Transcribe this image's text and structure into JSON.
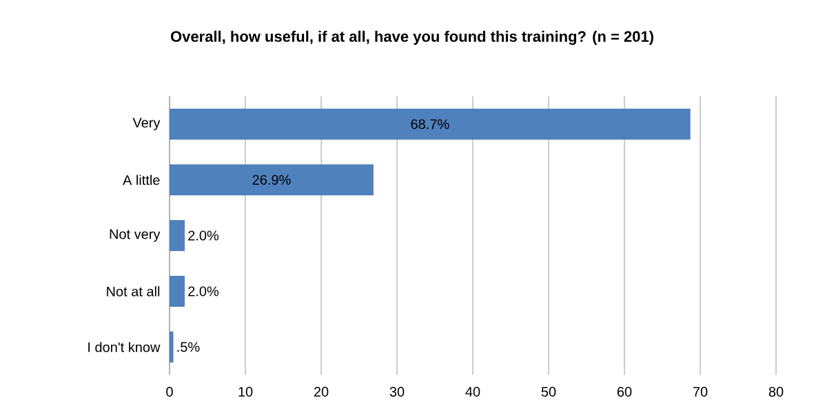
{
  "chart_data": {
    "type": "bar",
    "orientation": "horizontal",
    "title": "Overall, how useful, if at all, have you found this training? (n = 201)",
    "categories": [
      "Very",
      "A little",
      "Not very",
      "Not at all",
      "I don't know"
    ],
    "values": [
      68.7,
      26.9,
      2.0,
      2.0,
      0.5
    ],
    "value_labels": [
      "68.7%",
      "26.9%",
      "2.0%",
      "2.0%",
      ".5%"
    ],
    "color": "#4f81bd",
    "xlim": [
      0,
      80
    ],
    "xticks": [
      0,
      10,
      20,
      30,
      40,
      50,
      60,
      70,
      80
    ],
    "grid": "x"
  }
}
